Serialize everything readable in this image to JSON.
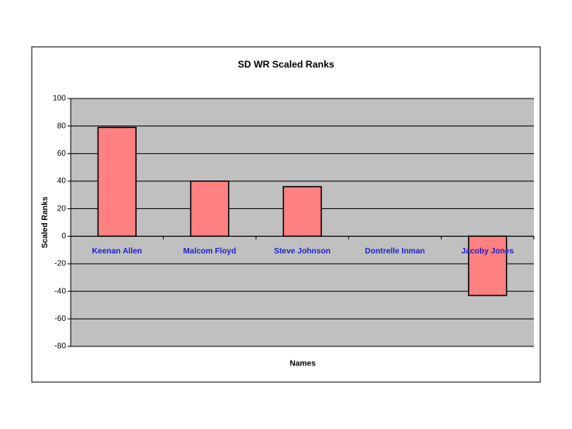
{
  "chart_data": {
    "type": "bar",
    "title": "SD WR  Scaled Ranks",
    "x_label": "Names",
    "y_label": "Scaled Ranks",
    "categories": [
      "Keenan Allen",
      "Malcom Floyd",
      "Steve Johnson",
      "Dontrelle Inman",
      "Jacoby Jones"
    ],
    "values": [
      79,
      40,
      36,
      0,
      -43
    ],
    "color": "#ff8080",
    "ylim": [
      -80,
      100
    ],
    "yticks": [
      -80,
      -60,
      -40,
      -20,
      0,
      20,
      40,
      60,
      80,
      100
    ],
    "grid": true
  }
}
